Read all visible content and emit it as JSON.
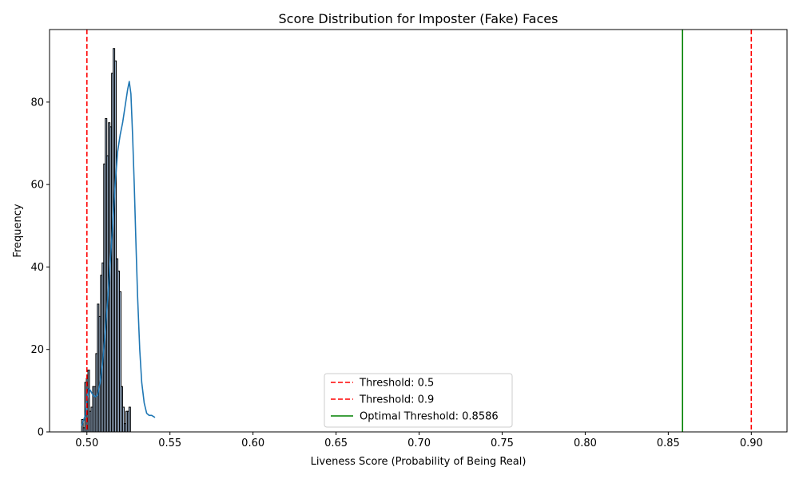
{
  "chart_data": {
    "type": "bar",
    "title": "Score Distribution for Imposter (Fake) Faces",
    "xlabel": "Liveness Score (Probability of Being Real)",
    "ylabel": "Frequency",
    "xlim": [
      0.4775,
      0.9215
    ],
    "ylim": [
      0,
      97.6
    ],
    "xticks": [
      0.5,
      0.55,
      0.6,
      0.65,
      0.7,
      0.75,
      0.8,
      0.85,
      0.9
    ],
    "xtick_labels": [
      "0.50",
      "0.55",
      "0.60",
      "0.65",
      "0.70",
      "0.75",
      "0.80",
      "0.85",
      "0.90"
    ],
    "yticks": [
      0,
      20,
      40,
      60,
      80
    ],
    "ytick_labels": [
      "0",
      "20",
      "40",
      "60",
      "80"
    ],
    "grid": false,
    "legend_position": "bottom-center",
    "histogram": {
      "bin_start": 0.4968,
      "bin_width": 0.00095,
      "counts": [
        3,
        1,
        12,
        13,
        15,
        5,
        6,
        11,
        11,
        19,
        31,
        28,
        38,
        41,
        65,
        76,
        67,
        75,
        74,
        87,
        93,
        90,
        42,
        39,
        34,
        11,
        6,
        2,
        5,
        5,
        6
      ],
      "bar_fill": "#a6bdd7",
      "bar_edge": "#000000"
    },
    "kde": {
      "x": [
        0.4968,
        0.499,
        0.5002,
        0.5012,
        0.5022,
        0.5035,
        0.505,
        0.5065,
        0.508,
        0.5095,
        0.511,
        0.5125,
        0.514,
        0.5155,
        0.517,
        0.5185,
        0.52,
        0.5215,
        0.523,
        0.5245,
        0.5255,
        0.5265,
        0.5275,
        0.5285,
        0.5295,
        0.5305,
        0.5318,
        0.533,
        0.5345,
        0.536,
        0.5375,
        0.539,
        0.541
      ],
      "y": [
        1.5,
        4,
        8,
        10.5,
        10,
        9,
        8.5,
        9,
        12,
        17,
        24,
        32,
        41,
        50,
        60,
        68,
        72,
        75,
        79,
        83,
        85,
        82,
        72,
        60,
        46,
        33,
        20,
        12,
        7,
        4.5,
        4,
        4,
        3.5
      ],
      "color": "#1f77b4"
    },
    "lines": [
      {
        "label": "Threshold: 0.5",
        "x": 0.5,
        "style": "dashed",
        "color": "#ff0000"
      },
      {
        "label": "Threshold: 0.9",
        "x": 0.9,
        "style": "dashed",
        "color": "#ff0000"
      },
      {
        "label": "Optimal Threshold: 0.8586",
        "x": 0.8586,
        "style": "solid",
        "color": "#008000"
      }
    ]
  }
}
